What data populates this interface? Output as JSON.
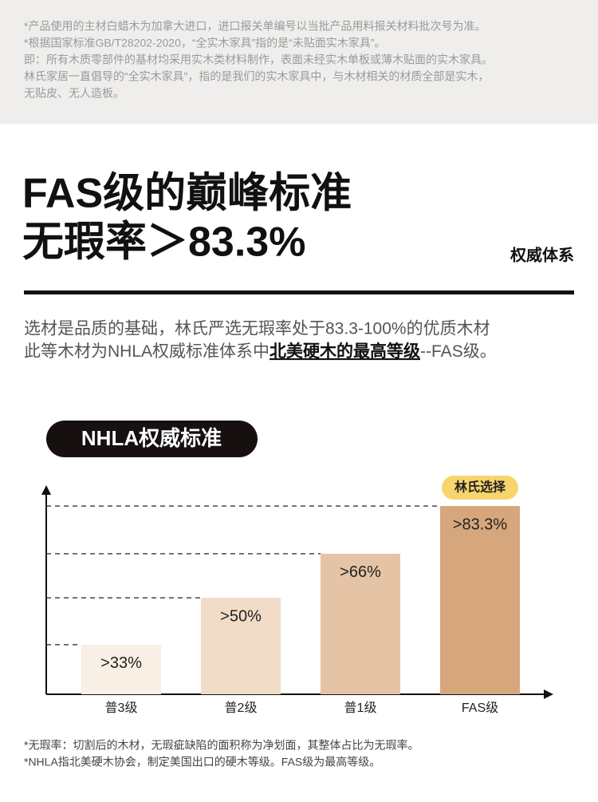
{
  "notes": [
    "*产品使用的主材白蜡木为加拿大进口，进口报关单编号以当批产品用料报关材料批次号为准。",
    "*根据国家标准GB/T28202-2020，“全实木家具”指的是“未贴面实木家具”。",
    "即：所有木质零部件的基材均采用实木类材料制作，表面未经实木单板或薄木贴面的实木家具。",
    "林氏家居一直倡导的“全实木家具”，指的是我们的实木家具中，与木材相关的材质全部是实木，",
    "无贴皮、无人造板。"
  ],
  "headline": {
    "line1": "FAS级的巅峰标准",
    "line2": "无瑕率＞83.3%",
    "tag": "权威体系"
  },
  "intro": {
    "line1": "选材是品质的基础，林氏严选无瑕率处于83.3-100%的优质木材",
    "line2_start": "此等木材为NHLA权威标准体系中",
    "line2_bold": "北美硬木的最高等级",
    "line2_end": "--FAS级。"
  },
  "chart_data": {
    "type": "bar",
    "title": "NHLA权威标准",
    "categories": [
      "普3级",
      "普2级",
      "普1级",
      "FAS级"
    ],
    "values": [
      33,
      50,
      66,
      83.3
    ],
    "value_labels": [
      ">33%",
      ">50%",
      ">66%",
      ">83.3%"
    ],
    "colors": [
      "#f8efe5",
      "#f1dcc7",
      "#e5c4a5",
      "#d6a77d"
    ],
    "ylim": [
      15,
      90
    ],
    "annotation": "林氏选择"
  },
  "footnotes": [
    "*无瑕率：切割后的木材，无瑕疵缺陷的面积称为净划面，其整体占比为无瑕率。",
    "*NHLA指北美硬木协会，制定美国出口的硬木等级。FAS级为最高等级。"
  ]
}
